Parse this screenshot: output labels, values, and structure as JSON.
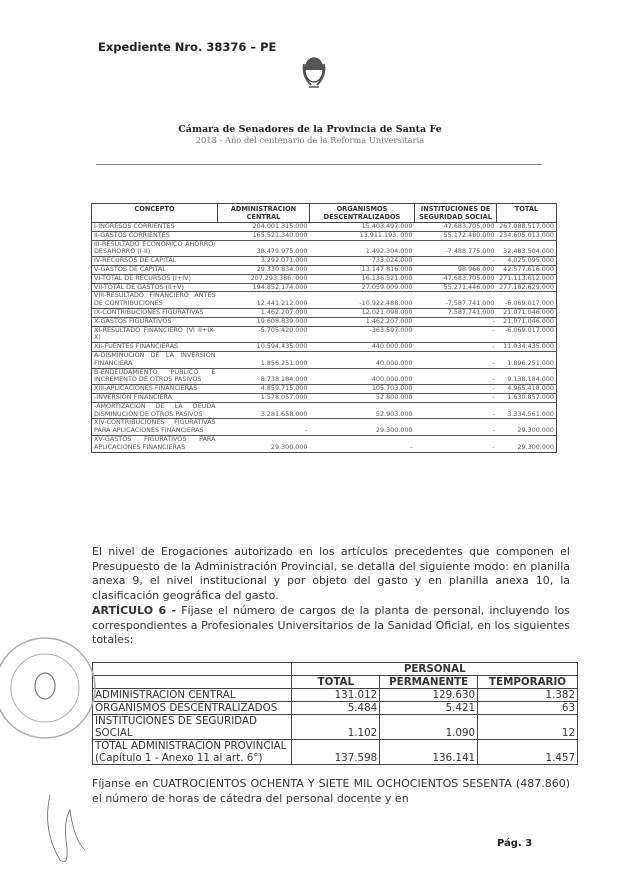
{
  "header": {
    "expediente": "Expediente Nro. 38376 – PE",
    "chamber": "Cámara de Senadores de la Provincia de Santa Fe",
    "motto": "2018 - Año del centenario de la Reforma Universitaria"
  },
  "table1": {
    "headers": [
      "CONCEPTO",
      "ADMINISTRACION CENTRAL",
      "ORGANISMOS DESCENTRALIZADOS",
      "INSTITUCIONES DE SEGURIDAD SOCIAL",
      "TOTAL"
    ],
    "rows": [
      [
        "I-INGRESOS CORRIENTES",
        "204.001.315.000",
        "15.403.497.000",
        "47.683.705.000",
        "267.088.517.000"
      ],
      [
        "II-GASTOS CORRIENTES",
        "165.521.340.000",
        "13.911.193. 000",
        "55.172.480.000",
        "234.605.013.000"
      ],
      [
        "III-RESULTADO ECONÓMICO AHORRO/ DESAHORRO (I-II)",
        "38.479.975.000",
        "1.492.304.000",
        "-7.488.775.000",
        "32.483.504.000"
      ],
      [
        "IV-RECURSOS DE CAPITAL",
        "3.292.071.000",
        "733.024.000",
        "-",
        "4.025.095.000"
      ],
      [
        "V-GASTOS DE CAPITAL",
        "29.330.834.000",
        "13.147.816.000",
        "98.966.000",
        "42.577.616.000"
      ],
      [
        "VI-TOTAL DE RECURSOS (I+IV)",
        "207.293.386. 000",
        "16.136.521.000",
        "47.683.705.000",
        "271.113.612.000"
      ],
      [
        "VII-TOTAL DE GASTOS (II+V)",
        "194.852.174.000",
        "27.059.009.000",
        "55.271.446.000",
        "277.182.629.000"
      ],
      [
        "VIII-RESULTADO FINANCIERO ANTES DE CONTRIBUCIONES",
        "12.441.212.000",
        "-10.922.488.000",
        "-7.587.741.000",
        "-6.069.017.000"
      ],
      [
        "IX-CONTRIBUCIONES FIGURATIVAS",
        "1.462.207.000",
        "12.021.098.000",
        "7.587.741.000",
        "21.071.046.000"
      ],
      [
        "X-GASTOS FIGURATIVOS",
        "19.608.839.000",
        "1.462.207.000",
        "-",
        "21.071.046.000"
      ],
      [
        "XI-RESULTADO FINANCIERO (VI II+IX-X)",
        "-5.705.420.000",
        "-363.597.000",
        "-",
        "-6.069.017.000"
      ],
      [
        "XII-FUENTES FINANCIERAS",
        "10.594.435.000",
        "440.000.000",
        "-",
        "11.034.435.000"
      ],
      [
        "A-DISMINUCIÓN DE LA INVERSIÓN FINANCIERA",
        "1.856.251.000",
        "40.000.000",
        "-",
        "1.896.251.000"
      ],
      [
        "B-ENDEUDAMIENTO PÚBLICO E INCREMENTO DE OTROS PASIVOS",
        "8.738.184.000",
        "400.000.000",
        "-",
        "9.138.184.000"
      ],
      [
        "XIII-APLICACIONES FINANCIERAS",
        "4.859.715.000",
        "105.703.000",
        "-",
        "4.965.418.000"
      ],
      [
        "-INVERSION FINANCIERA",
        "1.578.057.000",
        "52.800.000",
        "-",
        "1.630.857.000"
      ],
      [
        "-AMORTIZACIÓN DE LA DEUDA DISMINUCIÓN DE OTROS PASIVOS",
        "3.281.658.000",
        "52.903.000",
        "-",
        "3.334.561.000"
      ],
      [
        "XIV-CONTRIBUCIONES FIGURATIVAS PARA APLICACIONES FINANCIERAS",
        "-",
        "29.300.000",
        "-",
        "29.300.000"
      ],
      [
        "XV-GASTOS FIGURATIVOS PARA APLICACIONES FINANCIERAS",
        "29.300.000",
        "-",
        "-",
        "29.300.000"
      ]
    ]
  },
  "body": {
    "p1": "El nivel de Erogaciones autorizado en los artículos precedentes que componen el Presupuesto de la Administración Provincial, se detalla del siguiente modo: en planilla anexa 9, el nivel institucional y por objeto del gasto y en planilla anexa 10, la clasificación geográfica del gasto.",
    "art_label": "ARTÍCULO 6 -",
    "p2": " Fíjase el número de cargos de la planta de personal, incluyendo los correspondientes a Profesionales Universitarios de la Sanidad Oficial, en los siguientes totales:",
    "p3": "Fíjanse en CUATROCIENTOS OCHENTA Y SIETE MIL OCHOCIENTOS SESENTA (487.860) el número de horas de cátedra del personal docente y en"
  },
  "table2": {
    "group": "PERSONAL",
    "headers": [
      "TOTAL",
      "PERMANENTE",
      "TEMPORARIO"
    ],
    "rows": [
      [
        "ADMINISTRACIÓN CENTRAL",
        "131.012",
        "129.630",
        "1.382"
      ],
      [
        "ORGANISMOS DESCENTRALIZADOS",
        "5.484",
        "5.421",
        "63"
      ],
      [
        "INSTITUCIONES DE SEGURIDAD SOCIAL",
        "1.102",
        "1.090",
        "12"
      ],
      [
        "TOTAL ADMINISTRACIÓN PROVINCIAL (Capítulo 1 - Anexo 11 al art. 6°)",
        "137.598",
        "136.141",
        "1.457"
      ]
    ]
  },
  "footer": {
    "page": "Pág. 3"
  }
}
